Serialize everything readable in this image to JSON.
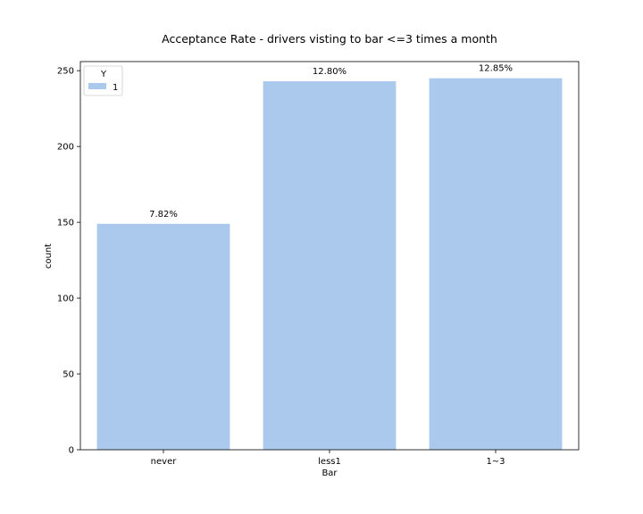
{
  "chart_data": {
    "type": "bar",
    "title": "Acceptance Rate - drivers visting to bar <=3 times a month",
    "xlabel": "Bar",
    "ylabel": "count",
    "categories": [
      "never",
      "less1",
      "1~3"
    ],
    "series": [
      {
        "name": "1",
        "values": [
          149,
          243,
          245
        ],
        "labels": [
          "7.82%",
          "12.80%",
          "12.85%"
        ]
      }
    ],
    "ylim": [
      0,
      256
    ],
    "yticks": [
      0,
      50,
      100,
      150,
      200,
      250
    ],
    "grid": false,
    "legend": {
      "title": "Y",
      "placement": "top-left"
    },
    "colors": {
      "bar": "#abc9ed",
      "axis": "#000000"
    }
  }
}
